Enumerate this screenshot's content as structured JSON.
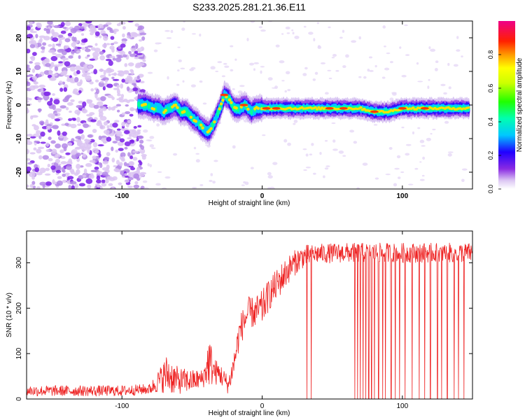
{
  "title": "S233.2025.281.21.36.E11",
  "colorbar": {
    "label": "Normalized spectral amplitude",
    "ticks": [
      "0.0",
      "0.2",
      "0.4",
      "0.6",
      "0.8"
    ],
    "tick_values": [
      0.0,
      0.2,
      0.4,
      0.6,
      0.8
    ],
    "range": [
      0,
      1
    ]
  },
  "chart_data": [
    {
      "type": "heatmap",
      "title": "S233.2025.281.21.36.E11",
      "xlabel": "Height of straight line (km)",
      "ylabel": "Frequency (Hz)",
      "xlim": [
        -168,
        150
      ],
      "ylim": [
        -25,
        25
      ],
      "x_ticks": [
        -100,
        0,
        100
      ],
      "x_tick_labels": [
        "-100",
        "0",
        "100"
      ],
      "y_ticks": [
        -20,
        -10,
        0,
        10,
        20
      ],
      "y_tick_labels": [
        "-20",
        "-10",
        "0",
        "10",
        "20"
      ],
      "ridge": {
        "x": [
          -88,
          -82,
          -78,
          -74,
          -70,
          -66,
          -62,
          -58,
          -54,
          -50,
          -46,
          -42,
          -38,
          -34,
          -30,
          -27,
          -24,
          -20,
          -16,
          -12,
          -8,
          -4,
          0,
          10,
          20,
          40,
          60,
          70,
          80,
          90,
          100,
          110,
          120,
          130,
          140,
          148
        ],
        "freq": [
          0,
          0,
          -1,
          -1,
          -2,
          -1,
          0,
          -2,
          -2,
          -4,
          -5,
          -7,
          -8,
          -5,
          -1,
          3,
          2,
          -1,
          -1,
          0,
          -2,
          -1,
          -1,
          -1,
          -1,
          -1,
          -1,
          -1,
          -2,
          -2,
          -1,
          -1,
          -1,
          -1,
          -1,
          -1
        ]
      },
      "noise_region_x": [
        -168,
        -88
      ],
      "noise_freq_range": [
        -25,
        25
      ]
    },
    {
      "type": "line",
      "xlabel": "Height of straight line (km)",
      "ylabel": "SNR (10 * v/v)",
      "xlim": [
        -168,
        150
      ],
      "ylim": [
        0,
        370
      ],
      "x_ticks": [
        -100,
        0,
        100
      ],
      "x_tick_labels": [
        "-100",
        "0",
        "100"
      ],
      "y_ticks": [
        0,
        100,
        200,
        300
      ],
      "y_tick_labels": [
        "0",
        "100",
        "200",
        "300"
      ],
      "series": [
        {
          "name": "SNR",
          "color": "#ee2222",
          "envelope_x": [
            -168,
            -100,
            -80,
            -72,
            -68,
            -60,
            -50,
            -42,
            -38,
            -34,
            -30,
            -24,
            -20,
            -16,
            -10,
            -5,
            0,
            5,
            10,
            15,
            20,
            25,
            30,
            40,
            60,
            80,
            100,
            120,
            150
          ],
          "envelope_y": [
            18,
            18,
            22,
            45,
            55,
            40,
            40,
            45,
            85,
            60,
            55,
            30,
            80,
            150,
            190,
            190,
            200,
            230,
            250,
            270,
            290,
            305,
            315,
            320,
            322,
            322,
            322,
            322,
            322
          ],
          "noise_amplitude": [
            12,
            12,
            12,
            30,
            45,
            30,
            25,
            20,
            60,
            30,
            25,
            20,
            30,
            35,
            35,
            35,
            40,
            35,
            35,
            35,
            30,
            28,
            25,
            22,
            22,
            22,
            22,
            22,
            22
          ],
          "dropout_x": [
            32,
            35,
            66,
            68,
            70,
            72,
            74,
            76,
            78,
            80,
            83,
            86,
            88,
            92,
            95,
            98,
            102,
            107,
            112,
            116,
            120,
            125,
            128,
            132,
            137,
            140,
            144
          ]
        }
      ]
    }
  ]
}
